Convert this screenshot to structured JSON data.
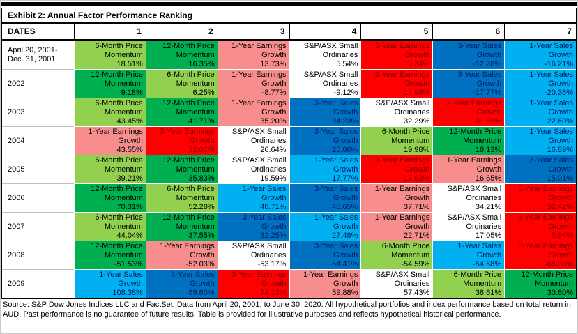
{
  "page": {
    "title": "Exhibit 2: Annual Factor Performance Ranking"
  },
  "header": {
    "dates_label": "DATES",
    "rank_columns": [
      "1",
      "2",
      "3",
      "4",
      "5",
      "6",
      "7"
    ]
  },
  "factors": {
    "m6": {
      "label": "6-Month Price Momentum",
      "bg": "#92D050",
      "text": "#000000"
    },
    "m12": {
      "label": "12-Month Price Momentum",
      "bg": "#00B050",
      "text": "#000000"
    },
    "eg1": {
      "label": "1-Year Earnings Growth",
      "bg": "#F78D8D",
      "text": "#000000"
    },
    "asx": {
      "label": "S&P/ASX Small Ordinaries",
      "bg": "#FFFFFF",
      "text": "#000000"
    },
    "eg3": {
      "label": "3-Year Earnings Growth",
      "bg": "#FF0000",
      "text": "#7F0000"
    },
    "sg3": {
      "label": "3-Year Sales Growth",
      "bg": "#0070C0",
      "text": "#002060"
    },
    "sg1": {
      "label": "1-Year Sales Growth",
      "bg": "#00B0F0",
      "text": "#002060"
    }
  },
  "chart_data": {
    "type": "table",
    "title": "Exhibit 2: Annual Factor Performance Ranking",
    "columns": [
      "DATES",
      "1",
      "2",
      "3",
      "4",
      "5",
      "6",
      "7"
    ],
    "unit": "percent_total_return",
    "rows": [
      {
        "date": "April 20, 2001- Dec. 31, 2001",
        "cells": [
          {
            "f": "m6",
            "pct": 18.51
          },
          {
            "f": "m12",
            "pct": 16.35
          },
          {
            "f": "eg1",
            "pct": 13.73
          },
          {
            "f": "asx",
            "pct": 5.54
          },
          {
            "f": "eg3",
            "pct": 5.34
          },
          {
            "f": "sg3",
            "pct": -12.28
          },
          {
            "f": "sg1",
            "pct": -16.21
          }
        ]
      },
      {
        "date": "2002",
        "cells": [
          {
            "f": "m12",
            "pct": 9.18
          },
          {
            "f": "m6",
            "pct": 6.25
          },
          {
            "f": "eg1",
            "pct": -8.77
          },
          {
            "f": "asx",
            "pct": -9.12
          },
          {
            "f": "eg3",
            "pct": -14.96
          },
          {
            "f": "sg3",
            "pct": -17.77
          },
          {
            "f": "sg1",
            "pct": -20.36
          }
        ]
      },
      {
        "date": "2003",
        "cells": [
          {
            "f": "m6",
            "pct": 43.45
          },
          {
            "f": "m12",
            "pct": 41.71
          },
          {
            "f": "eg1",
            "pct": 35.2
          },
          {
            "f": "sg3",
            "pct": 34.23
          },
          {
            "f": "asx",
            "pct": 32.29
          },
          {
            "f": "eg3",
            "pct": 31.59
          },
          {
            "f": "sg1",
            "pct": 22.6
          }
        ]
      },
      {
        "date": "2004",
        "cells": [
          {
            "f": "eg1",
            "pct": 43.55
          },
          {
            "f": "eg3",
            "pct": 32.07
          },
          {
            "f": "asx",
            "pct": 26.64
          },
          {
            "f": "sg3",
            "pct": 25.86
          },
          {
            "f": "m6",
            "pct": 19.98
          },
          {
            "f": "m12",
            "pct": 18.13
          },
          {
            "f": "sg1",
            "pct": 16.89
          }
        ]
      },
      {
        "date": "2005",
        "cells": [
          {
            "f": "m6",
            "pct": 39.21
          },
          {
            "f": "m12",
            "pct": 35.83
          },
          {
            "f": "asx",
            "pct": 19.59
          },
          {
            "f": "sg1",
            "pct": 17.77
          },
          {
            "f": "eg3",
            "pct": 17.63
          },
          {
            "f": "eg1",
            "pct": 16.65
          },
          {
            "f": "sg3",
            "pct": 15.01
          }
        ]
      },
      {
        "date": "2006",
        "cells": [
          {
            "f": "m12",
            "pct": 70.31
          },
          {
            "f": "m6",
            "pct": 52.28
          },
          {
            "f": "sg1",
            "pct": 48.71
          },
          {
            "f": "sg3",
            "pct": 46.65
          },
          {
            "f": "eg1",
            "pct": 37.71
          },
          {
            "f": "asx",
            "pct": 34.21
          },
          {
            "f": "eg3",
            "pct": 32.42
          }
        ]
      },
      {
        "date": "2007",
        "cells": [
          {
            "f": "m6",
            "pct": 44.04
          },
          {
            "f": "m12",
            "pct": 37.55
          },
          {
            "f": "sg3",
            "pct": 32.25
          },
          {
            "f": "sg1",
            "pct": 27.48
          },
          {
            "f": "eg1",
            "pct": 22.71
          },
          {
            "f": "asx",
            "pct": 17.05
          },
          {
            "f": "eg3",
            "pct": 5.94
          }
        ]
      },
      {
        "date": "2008",
        "cells": [
          {
            "f": "m12",
            "pct": -51.53
          },
          {
            "f": "eg1",
            "pct": -52.03
          },
          {
            "f": "asx",
            "pct": -53.17
          },
          {
            "f": "sg3",
            "pct": -54.41
          },
          {
            "f": "m6",
            "pct": -54.59
          },
          {
            "f": "sg1",
            "pct": -54.68
          },
          {
            "f": "eg3",
            "pct": -68.09
          }
        ]
      },
      {
        "date": "2009",
        "cells": [
          {
            "f": "sg1",
            "pct": 108.38
          },
          {
            "f": "sg3",
            "pct": 89.6
          },
          {
            "f": "eg3",
            "pct": 74.13
          },
          {
            "f": "eg1",
            "pct": 59.88
          },
          {
            "f": "asx",
            "pct": 57.43
          },
          {
            "f": "m6",
            "pct": 38.61
          },
          {
            "f": "m12",
            "pct": 30.6
          }
        ]
      }
    ]
  },
  "footnote": "Source: S&P Dow Jones Indices LLC and FactSet. Data from April 20, 2001, to June 30, 2020. All hypothetical portfolios and index performance based on total return in AUD. Past performance is no guarantee of future results. Table is provided for illustrative purposes and reflects hypothetical historical performance."
}
